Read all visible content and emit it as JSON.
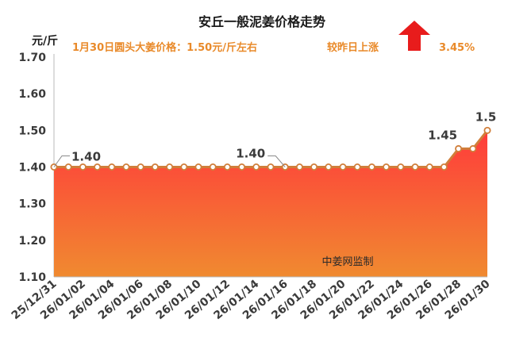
{
  "chart_data": {
    "type": "area",
    "title": "安丘一般泥姜价格走势",
    "subtitle": "1月30日圆头大姜价格：1.50元/斤左右",
    "change_label": "较昨日上涨",
    "change_value": "3.45%",
    "change_direction": "up",
    "ylabel": "元/斤",
    "xlabel": "",
    "ylim": [
      1.1,
      1.7
    ],
    "yticks": [
      "1.10",
      "1.20",
      "1.30",
      "1.40",
      "1.50",
      "1.60",
      "1.70"
    ],
    "watermark": "中姜网监制",
    "x": [
      "25/12/31",
      "26/01/01",
      "26/01/02",
      "26/01/03",
      "26/01/04",
      "26/01/05",
      "26/01/06",
      "26/01/07",
      "26/01/08",
      "26/01/09",
      "26/01/10",
      "26/01/11",
      "26/01/12",
      "26/01/13",
      "26/01/14",
      "26/01/15",
      "26/01/16",
      "26/01/17",
      "26/01/18",
      "26/01/19",
      "26/01/20",
      "26/01/21",
      "26/01/22",
      "26/01/23",
      "26/01/24",
      "26/01/25",
      "26/01/26",
      "26/01/27",
      "26/01/28",
      "26/01/29",
      "26/01/30"
    ],
    "xtick_labels": [
      "25/12/31",
      "26/01/02",
      "26/01/04",
      "26/01/06",
      "26/01/08",
      "26/01/10",
      "26/01/12",
      "26/01/14",
      "26/01/16",
      "26/01/18",
      "26/01/20",
      "26/01/22",
      "26/01/24",
      "26/01/26",
      "26/01/28",
      "26/01/30"
    ],
    "values": [
      1.4,
      1.4,
      1.4,
      1.4,
      1.4,
      1.4,
      1.4,
      1.4,
      1.4,
      1.4,
      1.4,
      1.4,
      1.4,
      1.4,
      1.4,
      1.4,
      1.4,
      1.4,
      1.4,
      1.4,
      1.4,
      1.4,
      1.4,
      1.4,
      1.4,
      1.4,
      1.4,
      1.4,
      1.45,
      1.45,
      1.5
    ],
    "data_labels": [
      {
        "x": "25/12/31",
        "text": "1.40"
      },
      {
        "x": "26/01/16",
        "text": "1.40"
      },
      {
        "x": "26/01/28",
        "text": "1.45"
      },
      {
        "x": "26/01/30",
        "text": "1.5"
      }
    ],
    "grid": false,
    "colors": {
      "title": "#1a1a1a",
      "accent": "#e98a2a",
      "line": "#d07e3a",
      "fill_top": "#ff3b3b",
      "fill_bottom": "#f08a30",
      "arrow": "#e81c1c",
      "axis_text": "#3a3a3a"
    }
  }
}
